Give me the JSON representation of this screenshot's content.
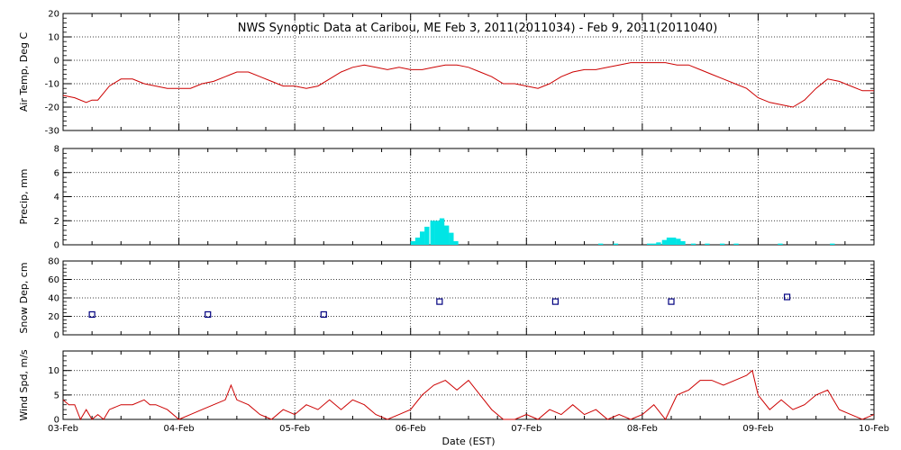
{
  "chart_data": {
    "title": "NWS Synoptic Data at Caribou, ME   Feb  3, 2011(2011034) - Feb  9, 2011(2011040)",
    "xlabel": "Date (EST)",
    "x_ticks": [
      "03-Feb",
      "04-Feb",
      "05-Feb",
      "06-Feb",
      "07-Feb",
      "08-Feb",
      "09-Feb",
      "10-Feb"
    ],
    "x_range_days": [
      0,
      7
    ],
    "grid": true,
    "panels": [
      {
        "id": "air-temp",
        "type": "line",
        "ylabel": "Air Temp, Deg C",
        "ylim": [
          -30,
          20
        ],
        "y_ticks": [
          -30,
          -20,
          -10,
          0,
          10,
          20
        ],
        "color": "#cc0000",
        "series": [
          {
            "x": [
              0,
              0.1,
              0.2,
              0.25,
              0.3,
              0.4,
              0.5,
              0.6,
              0.7,
              0.8,
              0.9,
              1.0,
              1.1,
              1.2,
              1.3,
              1.4,
              1.5,
              1.6,
              1.7,
              1.8,
              1.9,
              2.0,
              2.1,
              2.2,
              2.3,
              2.4,
              2.5,
              2.6,
              2.7,
              2.8,
              2.9,
              3.0,
              3.1,
              3.2,
              3.3,
              3.4,
              3.5,
              3.6,
              3.7,
              3.8,
              3.9,
              4.0,
              4.1,
              4.2,
              4.3,
              4.4,
              4.5,
              4.6,
              4.7,
              4.8,
              4.9,
              5.0,
              5.1,
              5.2,
              5.3,
              5.4,
              5.5,
              5.6,
              5.7,
              5.8,
              5.9,
              6.0,
              6.1,
              6.2,
              6.3,
              6.4,
              6.5,
              6.6,
              6.7,
              6.8,
              6.9,
              7.0
            ],
            "y": [
              -15,
              -16,
              -18,
              -17,
              -17,
              -11,
              -8,
              -8,
              -10,
              -11,
              -12,
              -12,
              -12,
              -10,
              -9,
              -7,
              -5,
              -5,
              -7,
              -9,
              -11,
              -11,
              -12,
              -11,
              -8,
              -5,
              -3,
              -2,
              -3,
              -4,
              -3,
              -4,
              -4,
              -3,
              -2,
              -2,
              -3,
              -5,
              -7,
              -10,
              -10,
              -11,
              -12,
              -10,
              -7,
              -5,
              -4,
              -4,
              -3,
              -2,
              -1,
              -1,
              -1,
              -1,
              -2,
              -2,
              -4,
              -6,
              -8,
              -10,
              -12,
              -16,
              -18,
              -19,
              -20,
              -17,
              -12,
              -8,
              -9,
              -11,
              -13,
              -13
            ]
          }
        ]
      },
      {
        "id": "precip",
        "type": "bar",
        "ylabel": "Precip, mm",
        "ylim": [
          0,
          8
        ],
        "y_ticks": [
          0,
          2,
          4,
          6,
          8
        ],
        "color": "#00e5e5",
        "bar_width_days": 0.0417,
        "series": [
          {
            "x": [
              3.0,
              3.04,
              3.08,
              3.12,
              3.17,
              3.21,
              3.25,
              3.29,
              3.33,
              3.37,
              4.62,
              4.75,
              5.04,
              5.08,
              5.12,
              5.17,
              5.21,
              5.25,
              5.29,
              5.33,
              5.42,
              5.54,
              5.67,
              5.79,
              6.17,
              6.62
            ],
            "y": [
              0.3,
              0.6,
              1.1,
              1.5,
              2.0,
              2.0,
              2.2,
              1.6,
              1.0,
              0.3,
              0.1,
              0.1,
              0.1,
              0.1,
              0.2,
              0.4,
              0.6,
              0.6,
              0.5,
              0.3,
              0.1,
              0.1,
              0.1,
              0.1,
              0.1,
              0.1
            ]
          }
        ]
      },
      {
        "id": "snow-depth",
        "type": "scatter",
        "ylabel": "Snow Dep, cm",
        "ylim": [
          0,
          80
        ],
        "y_ticks": [
          0,
          20,
          40,
          60,
          80
        ],
        "color": "#000080",
        "series": [
          {
            "x": [
              0.25,
              1.25,
              2.25,
              3.25,
              4.25,
              5.25,
              6.25
            ],
            "y": [
              22,
              22,
              22,
              36,
              36,
              36,
              41
            ]
          }
        ]
      },
      {
        "id": "wind-speed",
        "type": "line",
        "ylabel": "Wind Spd, m/s",
        "ylim": [
          0,
          14
        ],
        "y_ticks": [
          0,
          5,
          10
        ],
        "color": "#cc0000",
        "series": [
          {
            "x": [
              0,
              0.05,
              0.1,
              0.15,
              0.2,
              0.25,
              0.3,
              0.35,
              0.4,
              0.5,
              0.6,
              0.7,
              0.75,
              0.8,
              0.9,
              1.0,
              1.1,
              1.2,
              1.3,
              1.4,
              1.45,
              1.5,
              1.6,
              1.7,
              1.8,
              1.9,
              2.0,
              2.1,
              2.2,
              2.3,
              2.4,
              2.5,
              2.6,
              2.7,
              2.8,
              2.9,
              3.0,
              3.1,
              3.2,
              3.3,
              3.4,
              3.5,
              3.6,
              3.7,
              3.8,
              3.9,
              4.0,
              4.1,
              4.2,
              4.3,
              4.4,
              4.5,
              4.6,
              4.7,
              4.8,
              4.9,
              5.0,
              5.1,
              5.2,
              5.3,
              5.4,
              5.5,
              5.6,
              5.7,
              5.8,
              5.9,
              5.95,
              6.0,
              6.1,
              6.2,
              6.3,
              6.4,
              6.5,
              6.6,
              6.7,
              6.8,
              6.9,
              7.0
            ],
            "y": [
              4,
              3,
              3,
              0,
              2,
              0,
              1,
              0,
              2,
              3,
              3,
              4,
              3,
              3,
              2,
              0,
              1,
              2,
              3,
              4,
              7,
              4,
              3,
              1,
              0,
              2,
              1,
              3,
              2,
              4,
              2,
              4,
              3,
              1,
              0,
              1,
              2,
              5,
              7,
              8,
              6,
              8,
              5,
              2,
              0,
              0,
              1,
              0,
              2,
              1,
              3,
              1,
              2,
              0,
              1,
              0,
              1,
              3,
              0,
              5,
              6,
              8,
              8,
              7,
              8,
              9,
              10,
              5,
              2,
              4,
              2,
              3,
              5,
              6,
              2,
              1,
              0,
              1
            ]
          }
        ]
      }
    ]
  }
}
